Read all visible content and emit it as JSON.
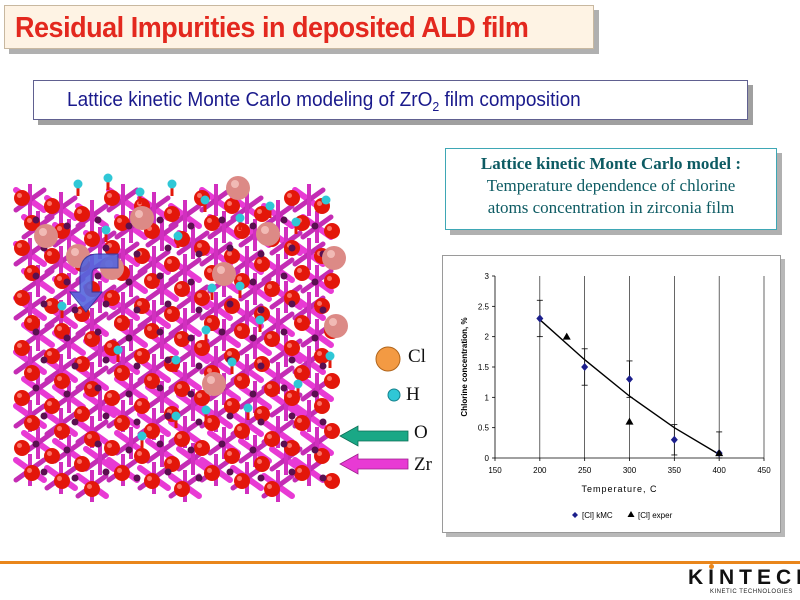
{
  "slide": {
    "title": "Residual Impurities in deposited ALD film",
    "subtitle_main": "Lattice kinetic Monte Carlo modeling of ZrO",
    "subtitle_sub": "2",
    "subtitle_tail": " film composition",
    "model_box": {
      "line1": "Lattice kinetic Monte Carlo model :",
      "line2": "Temperature dependence of chlorine",
      "line3": "atoms concentration in zirconia film"
    },
    "legend": {
      "cl": "Cl",
      "h": "H",
      "o": "O",
      "zr": "Zr"
    },
    "colors": {
      "title_red": "#e3281e",
      "subtitle_blue": "#1a1a8c",
      "teal_text": "#0d5b63",
      "accent_orange": "#e9861b",
      "cl_atom": "#f39a43",
      "h_atom": "#2fc7d6",
      "o_arrow": "#1aa886",
      "zr_arrow": "#e83ad4"
    },
    "logo": {
      "main": "KINTECH",
      "sub": "KINETIC TECHNOLOGIES"
    }
  },
  "chart_data": {
    "type": "scatter",
    "xlabel": "Temperature, C",
    "ylabel": "Chlorine concentration, %",
    "xlim": [
      150,
      450
    ],
    "ylim": [
      0,
      3
    ],
    "xticks": [
      "150",
      "200",
      "250",
      "300",
      "350",
      "400",
      "450"
    ],
    "yticks": [
      "0",
      "0.5",
      "1",
      "1.5",
      "2",
      "2.5",
      "3"
    ],
    "grid_x": true,
    "legend_position": "bottom",
    "series": [
      {
        "name": "[Cl] kMC",
        "marker": "diamond",
        "x": [
          200,
          250,
          300,
          350,
          400
        ],
        "y": [
          2.3,
          1.5,
          1.3,
          0.3,
          0.08
        ],
        "err": [
          0.3,
          0.3,
          0.3,
          0.25,
          0.35
        ]
      },
      {
        "name": "[Cl] exper",
        "marker": "triangle",
        "x": [
          230,
          300,
          400
        ],
        "y": [
          2.0,
          0.6,
          0.08
        ]
      }
    ],
    "trend_line": {
      "x": [
        200,
        250,
        300,
        350,
        400
      ],
      "y": [
        2.28,
        1.62,
        1.02,
        0.5,
        0.06
      ]
    }
  }
}
